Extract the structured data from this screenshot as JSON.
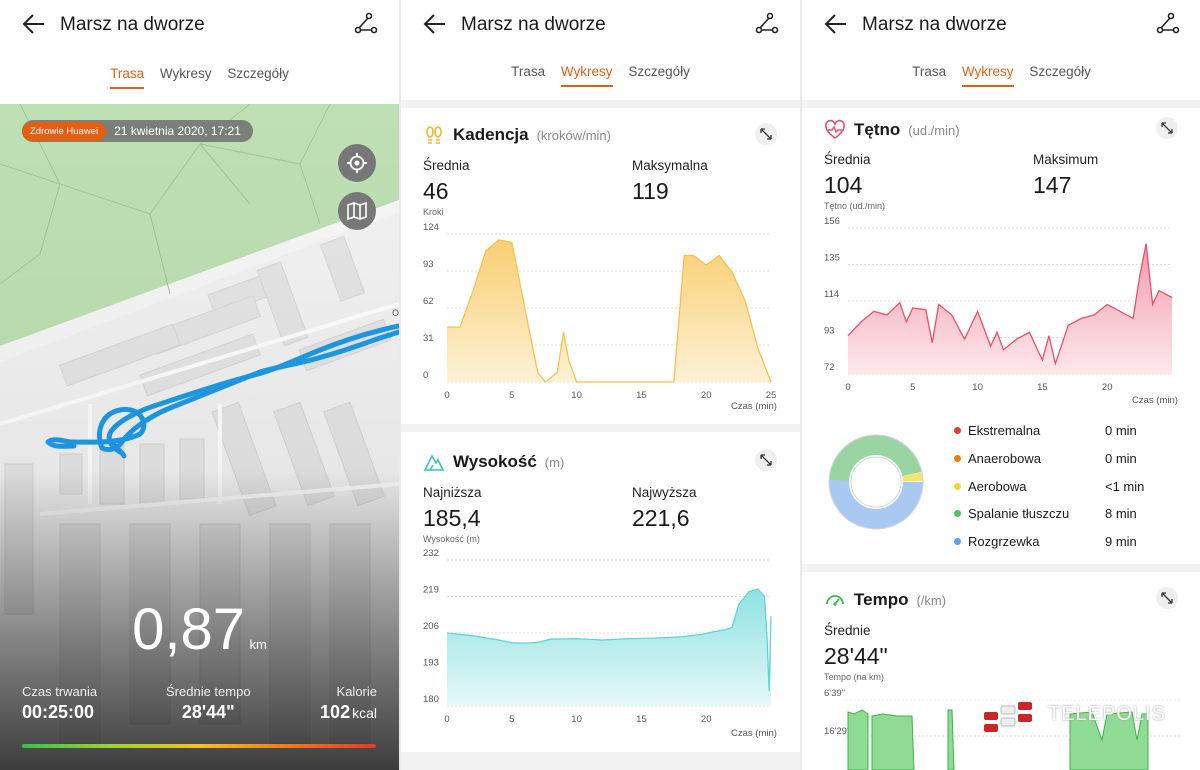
{
  "screens": [
    {
      "title": "Marsz na dworze",
      "tabs": [
        "Trasa",
        "Wykresy",
        "Szczegóły"
      ],
      "active_tab": 0
    },
    {
      "title": "Marsz na dworze",
      "tabs": [
        "Trasa",
        "Wykresy",
        "Szczegóły"
      ],
      "active_tab": 1
    },
    {
      "title": "Marsz na dworze",
      "tabs": [
        "Trasa",
        "Wykresy",
        "Szczegóły"
      ],
      "active_tab": 1
    }
  ],
  "icons": {
    "back": "arrow-left-icon",
    "route": "route-icon",
    "locate": "locate-icon",
    "map": "map-icon",
    "expand": "expand-icon",
    "steps": "footsteps-icon",
    "altitude": "mountain-icon",
    "heart": "heart-rate-icon",
    "speed": "speedometer-icon"
  },
  "colors": {
    "accent": "#e35f14",
    "cadence": "#f6c14c",
    "altitude": "#5fd4d6",
    "heart": "#e8506a",
    "tempo": "#4cc45c"
  },
  "route": {
    "badge_source": "Zdrowie Huawei",
    "badge_date": "21 kwietnia 2020, 17:21",
    "distance": "0,87",
    "distance_unit": "km",
    "stats": [
      {
        "label": "Czas trwania",
        "value": "00:25:00",
        "unit": ""
      },
      {
        "label": "Średnie tempo",
        "value": "28'44\"",
        "unit": ""
      },
      {
        "label": "Kalorie",
        "value": "102",
        "unit": "kcal"
      }
    ]
  },
  "cadence": {
    "title": "Kadencja",
    "unit": "(kroków/min)",
    "avg_label": "Średnia",
    "avg": "46",
    "avg_sub": "Kroki",
    "max_label": "Maksymalna",
    "max": "119",
    "time_label": "Czas (min)"
  },
  "altitude": {
    "title": "Wysokość",
    "unit": "(m)",
    "min_label": "Najniższa",
    "min": "185,4",
    "min_sub": "Wysokość (m)",
    "max_label": "Najwyższa",
    "max": "221,6",
    "time_label": "Czas (min)"
  },
  "heart": {
    "title": "Tętno",
    "unit": "(ud./min)",
    "avg_label": "Średnia",
    "avg": "104",
    "avg_sub": "Tętno (ud./min)",
    "max_label": "Maksimum",
    "max": "147",
    "time_label": "Czas (min)",
    "zones": [
      {
        "name": "Ekstremalna",
        "value": "0 min",
        "color": "#e53935"
      },
      {
        "name": "Anaerobowa",
        "value": "0 min",
        "color": "#f57c00"
      },
      {
        "name": "Aerobowa",
        "value": "<1 min",
        "color": "#f5d533"
      },
      {
        "name": "Spalanie tłuszczu",
        "value": "8 min",
        "color": "#4cc45c"
      },
      {
        "name": "Rozgrzewka",
        "value": "9 min",
        "color": "#5b9ff0"
      }
    ]
  },
  "tempo": {
    "title": "Tempo",
    "unit": "(/km)",
    "avg_label": "Średnie",
    "avg": "28'44\"",
    "avg_sub": "Tempo (na km)",
    "y_ticks": [
      "6'39\"",
      "16'29\""
    ]
  },
  "watermark": "TELEPOLIS",
  "chart_data": [
    {
      "type": "area",
      "title": "Kadencja",
      "ylabel": "Kroki",
      "xlabel": "Czas (min)",
      "ylim": [
        0,
        124
      ],
      "xlim": [
        0,
        25
      ],
      "y_ticks": [
        "124",
        "93",
        "62",
        "31",
        "0"
      ],
      "x_ticks": [
        "0",
        "5",
        "10",
        "15",
        "20",
        "25"
      ],
      "x": [
        0,
        1,
        2,
        3,
        4,
        5,
        6,
        7,
        7.6,
        8.5,
        9,
        9.4,
        10,
        13,
        14.5,
        16,
        17.5,
        18.3,
        19,
        20,
        21,
        22,
        23,
        24,
        25
      ],
      "values": [
        46,
        46,
        76,
        110,
        119,
        117,
        62,
        8,
        0,
        8,
        42,
        18,
        0,
        0,
        0,
        0,
        0,
        106,
        106,
        98,
        106,
        92,
        68,
        28,
        0
      ]
    },
    {
      "type": "area",
      "title": "Wysokość",
      "ylabel": "Wysokość (m)",
      "xlabel": "Czas (min)",
      "ylim": [
        180,
        232
      ],
      "xlim": [
        0,
        25
      ],
      "y_ticks": [
        "232",
        "219",
        "206",
        "193",
        "180"
      ],
      "x_ticks": [
        "0",
        "5",
        "10",
        "15",
        "20"
      ],
      "x": [
        0,
        2,
        4,
        5,
        6,
        7,
        8,
        10,
        12,
        14,
        16,
        18,
        19.5,
        20.5,
        21.5,
        22,
        22.5,
        23.3,
        24,
        24.5,
        24.7,
        24.85,
        25
      ],
      "values": [
        206,
        205,
        203.5,
        202.5,
        202.4,
        202.6,
        203.8,
        204,
        203.5,
        204,
        204.2,
        204.6,
        205.4,
        206.4,
        207.2,
        208,
        216,
        220.8,
        221.6,
        219,
        204,
        185.4,
        212
      ]
    },
    {
      "type": "area",
      "title": "Tętno",
      "ylabel": "Tętno (ud./min)",
      "xlabel": "Czas (min)",
      "ylim": [
        72,
        156
      ],
      "xlim": [
        0,
        25
      ],
      "y_ticks": [
        "156",
        "135",
        "114",
        "93",
        "72"
      ],
      "x_ticks": [
        "0",
        "5",
        "10",
        "15",
        "20"
      ],
      "x": [
        0,
        1,
        2,
        3,
        4,
        4.5,
        5,
        6,
        6.5,
        7,
        8,
        9,
        10,
        11,
        11.5,
        12,
        13,
        14,
        15,
        15.5,
        16,
        17,
        18,
        19,
        20,
        21,
        22,
        22.5,
        23,
        23.5,
        24,
        25
      ],
      "values": [
        94,
        102,
        108,
        106,
        113,
        102,
        110,
        109,
        90,
        112,
        106,
        92,
        108,
        88,
        96,
        86,
        92,
        96,
        80,
        94,
        78,
        100,
        104,
        106,
        112,
        108,
        104,
        128,
        147,
        112,
        120,
        116
      ]
    },
    {
      "type": "area",
      "title": "Tempo",
      "ylabel": "Tempo (na km)",
      "y_ticks": [
        "6'39\"",
        "16'29\""
      ],
      "note": "partially visible; tempo segments only"
    }
  ]
}
